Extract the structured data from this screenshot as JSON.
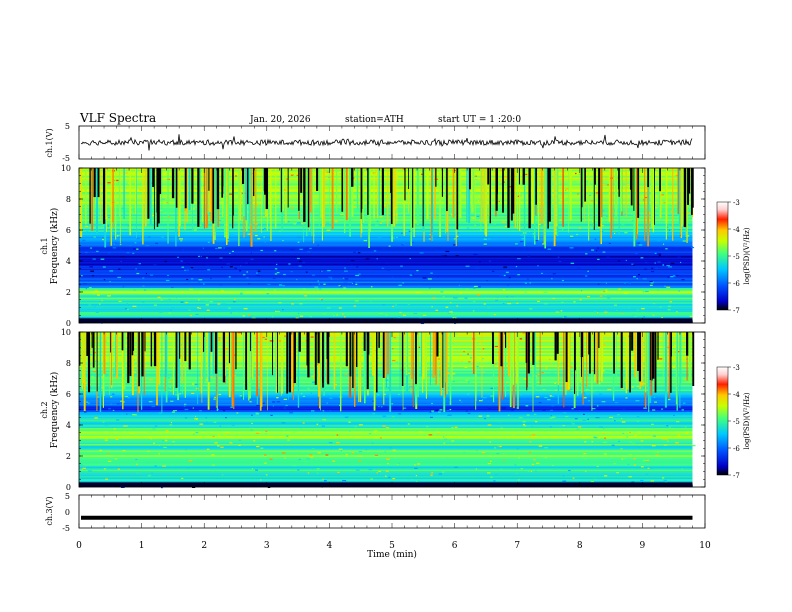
{
  "header": {
    "title": "VLF  Spectra",
    "date": "Jan. 20, 2026",
    "station": "station=ATH",
    "start_ut": "start  UT  =   1  :20:0"
  },
  "colors": {
    "colormap": [
      "#000000",
      "#0000c8",
      "#0050ff",
      "#00c8ff",
      "#40ff80",
      "#c8ff00",
      "#ffc800",
      "#ff2000",
      "#ffd0d0",
      "#ffffff"
    ],
    "trace": "#000000"
  },
  "chart_data": [
    {
      "type": "line",
      "name": "ch1-waveform",
      "ylabel": "ch.1(V)",
      "ylim": [
        -5,
        5
      ],
      "yticks": [
        "5",
        "-5"
      ],
      "xlim": [
        0,
        10
      ],
      "baseline": 0,
      "noise_amplitude": 0.8,
      "visible_until_min": 9.8
    },
    {
      "type": "heatmap",
      "name": "ch1-spectrogram",
      "ylabel_channel": "ch.1",
      "ylabel": "Frequency  (kHz)",
      "ylim": [
        0,
        10
      ],
      "yticks": [
        "0",
        "2",
        "4",
        "6",
        "8",
        "10"
      ],
      "xlim": [
        0,
        10
      ],
      "colorbar": {
        "label": "log(PSD)(V²/Hz)",
        "range": [
          -7,
          -3
        ],
        "ticks": [
          "-3",
          "-4",
          "-5",
          "-6",
          "-7"
        ]
      },
      "psd_profile": [
        {
          "f_khz": 0.0,
          "log_psd": -6.9
        },
        {
          "f_khz": 0.5,
          "log_psd": -5.2
        },
        {
          "f_khz": 1.0,
          "log_psd": -5.5
        },
        {
          "f_khz": 1.5,
          "log_psd": -5.4
        },
        {
          "f_khz": 2.0,
          "log_psd": -5.0
        },
        {
          "f_khz": 2.5,
          "log_psd": -6.0
        },
        {
          "f_khz": 3.0,
          "log_psd": -6.3
        },
        {
          "f_khz": 3.5,
          "log_psd": -6.4
        },
        {
          "f_khz": 4.0,
          "log_psd": -6.5
        },
        {
          "f_khz": 4.5,
          "log_psd": -6.4
        },
        {
          "f_khz": 5.0,
          "log_psd": -6.0
        },
        {
          "f_khz": 6.0,
          "log_psd": -5.4
        },
        {
          "f_khz": 7.0,
          "log_psd": -5.2
        },
        {
          "f_khz": 8.0,
          "log_psd": -5.0
        },
        {
          "f_khz": 9.0,
          "log_psd": -4.9
        },
        {
          "f_khz": 10.0,
          "log_psd": -4.8
        }
      ],
      "data_until_min": 9.8
    },
    {
      "type": "heatmap",
      "name": "ch2-spectrogram",
      "ylabel_channel": "ch.2",
      "ylabel": "Frequency  (kHz)",
      "ylim": [
        0,
        10
      ],
      "yticks": [
        "0",
        "2",
        "4",
        "6",
        "8",
        "10"
      ],
      "xlim": [
        0,
        10
      ],
      "colorbar": {
        "label": "log(PSD)(V²/Hz)",
        "range": [
          -7,
          -3
        ],
        "ticks": [
          "-3",
          "-4",
          "-5",
          "-6",
          "-7"
        ]
      },
      "psd_profile": [
        {
          "f_khz": 0.0,
          "log_psd": -6.9
        },
        {
          "f_khz": 0.5,
          "log_psd": -5.4
        },
        {
          "f_khz": 1.0,
          "log_psd": -5.3
        },
        {
          "f_khz": 1.5,
          "log_psd": -5.5
        },
        {
          "f_khz": 2.0,
          "log_psd": -4.9
        },
        {
          "f_khz": 2.5,
          "log_psd": -5.4
        },
        {
          "f_khz": 3.0,
          "log_psd": -5.2
        },
        {
          "f_khz": 3.5,
          "log_psd": -4.9
        },
        {
          "f_khz": 4.0,
          "log_psd": -5.4
        },
        {
          "f_khz": 4.5,
          "log_psd": -5.6
        },
        {
          "f_khz": 5.0,
          "log_psd": -6.2
        },
        {
          "f_khz": 6.0,
          "log_psd": -5.5
        },
        {
          "f_khz": 7.0,
          "log_psd": -5.2
        },
        {
          "f_khz": 8.0,
          "log_psd": -5.0
        },
        {
          "f_khz": 9.0,
          "log_psd": -4.9
        },
        {
          "f_khz": 10.0,
          "log_psd": -4.8
        }
      ],
      "data_until_min": 9.8
    },
    {
      "type": "line",
      "name": "ch3-waveform",
      "ylabel": "ch.3(V)",
      "ylim": [
        -5,
        5
      ],
      "yticks": [
        "5",
        "0",
        "-5"
      ],
      "xlim": [
        0,
        10
      ],
      "xlabel": "Time  (min)",
      "xticks": [
        "0",
        "1",
        "2",
        "3",
        "4",
        "5",
        "6",
        "7",
        "8",
        "9",
        "10"
      ],
      "baseline": -1.9,
      "visible_until_min": 9.8
    }
  ]
}
